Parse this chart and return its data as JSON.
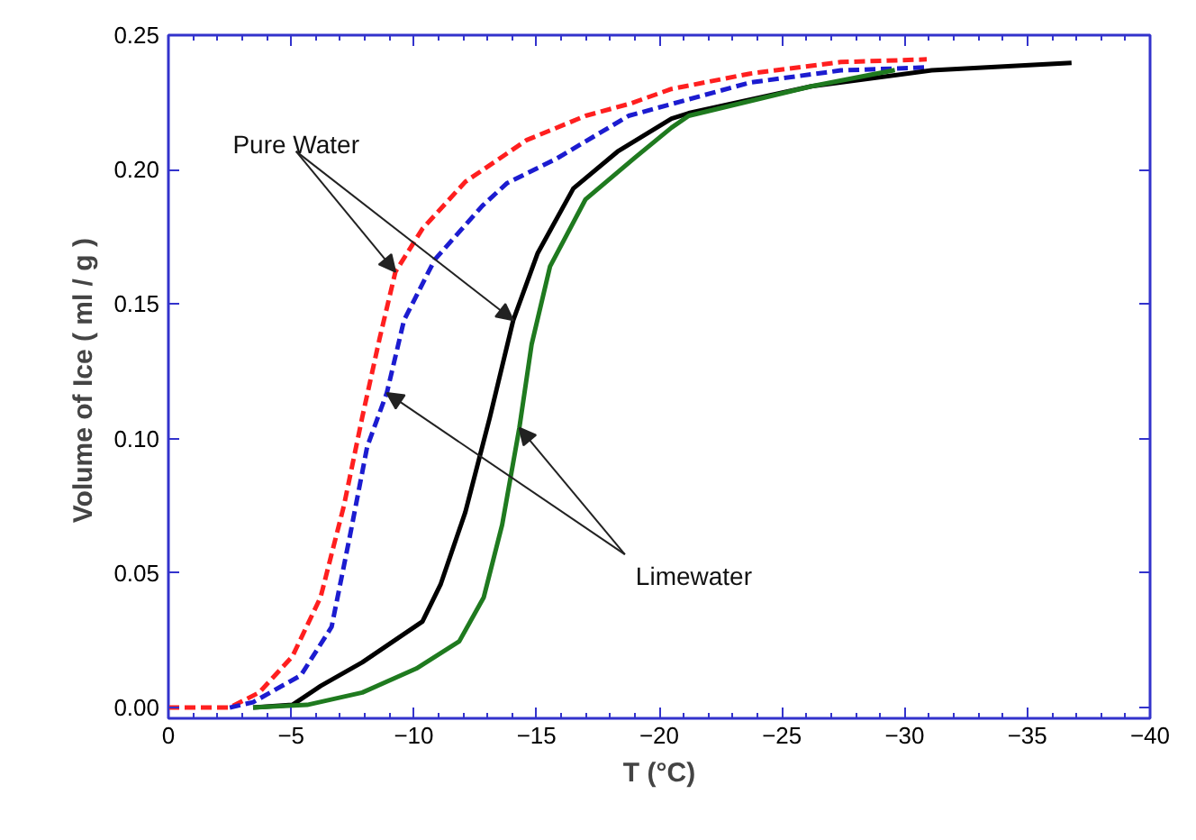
{
  "chart_data": {
    "type": "line",
    "xlabel": "T (°C)",
    "ylabel": "Volume of Ice  ( ml / g )",
    "xlim": [
      0,
      -40
    ],
    "ylim": [
      -0.004,
      0.25
    ],
    "xticks": [
      0,
      -5,
      -10,
      -15,
      -20,
      -25,
      -30,
      -35,
      -40
    ],
    "yticks": [
      {
        "value": 0,
        "label": "0.00"
      },
      {
        "value": 0.05,
        "label": "0.05"
      },
      {
        "value": 0.1,
        "label": "0.10"
      },
      {
        "value": 0.15,
        "label": "0.15"
      },
      {
        "value": 0.2,
        "label": "0.20"
      },
      {
        "value": 0.25,
        "label": "0.25"
      }
    ],
    "grid": false,
    "annotations": [
      {
        "text": "Pure Water",
        "x": -9.25,
        "y": 0.162
      },
      {
        "text": "Limewater",
        "x": -8.9,
        "y": 0.117
      }
    ],
    "series": [
      {
        "color": "#ff1f1f",
        "line_style": "dashed",
        "x": [
          0,
          -2.5,
          -3.7,
          -5.05,
          -6.2,
          -7.15,
          -7.9,
          -8.6,
          -9.25,
          -10.35,
          -12.1,
          -14.6,
          -17.0,
          -18.8,
          -20.5,
          -23.7,
          -27.4,
          -30.9
        ],
        "values": [
          0,
          0,
          0.0056,
          0.019,
          0.041,
          0.075,
          0.108,
          0.137,
          0.162,
          0.178,
          0.1955,
          0.211,
          0.22,
          0.2245,
          0.23,
          0.2357,
          0.24,
          0.241
        ]
      },
      {
        "color": "#1c1cd0",
        "line_style": "dashed",
        "x": [
          -2.5,
          -3.45,
          -5.4,
          -6.65,
          -7.4,
          -8.1,
          -8.9,
          -9.6,
          -10.85,
          -12.8,
          -13.8,
          -15.8,
          -18.75,
          -23.7,
          -27.4,
          -30.85
        ],
        "values": [
          0,
          0.002,
          0.012,
          0.03,
          0.064,
          0.097,
          0.117,
          0.144,
          0.1665,
          0.1866,
          0.195,
          0.204,
          0.22,
          0.2324,
          0.2369,
          0.238
        ]
      },
      {
        "color": "#000000",
        "line_style": "solid",
        "x": [
          -3.45,
          -5.05,
          -6.2,
          -7.9,
          -10.35,
          -11.1,
          -12.1,
          -13.1,
          -14.05,
          -15.05,
          -16.5,
          -18.3,
          -20.5,
          -21.2,
          -26.2,
          -31.1,
          -36.8
        ],
        "values": [
          0,
          0.001,
          0.008,
          0.0168,
          0.032,
          0.046,
          0.0727,
          0.108,
          0.144,
          0.169,
          0.193,
          0.2067,
          0.219,
          0.221,
          0.231,
          0.2369,
          0.2397
        ]
      },
      {
        "color": "#1f7a1f",
        "line_style": "solid",
        "x": [
          -3.45,
          -5.65,
          -7.9,
          -10.1,
          -11.85,
          -12.85,
          -13.6,
          -14.3,
          -14.8,
          -15.55,
          -17.0,
          -19.0,
          -20.5,
          -21.2,
          -26.2,
          -29.6
        ],
        "values": [
          0,
          0.001,
          0.0056,
          0.0145,
          0.0246,
          0.041,
          0.068,
          0.104,
          0.135,
          0.164,
          0.189,
          0.2044,
          0.2156,
          0.22,
          0.231,
          0.237
        ]
      }
    ]
  }
}
